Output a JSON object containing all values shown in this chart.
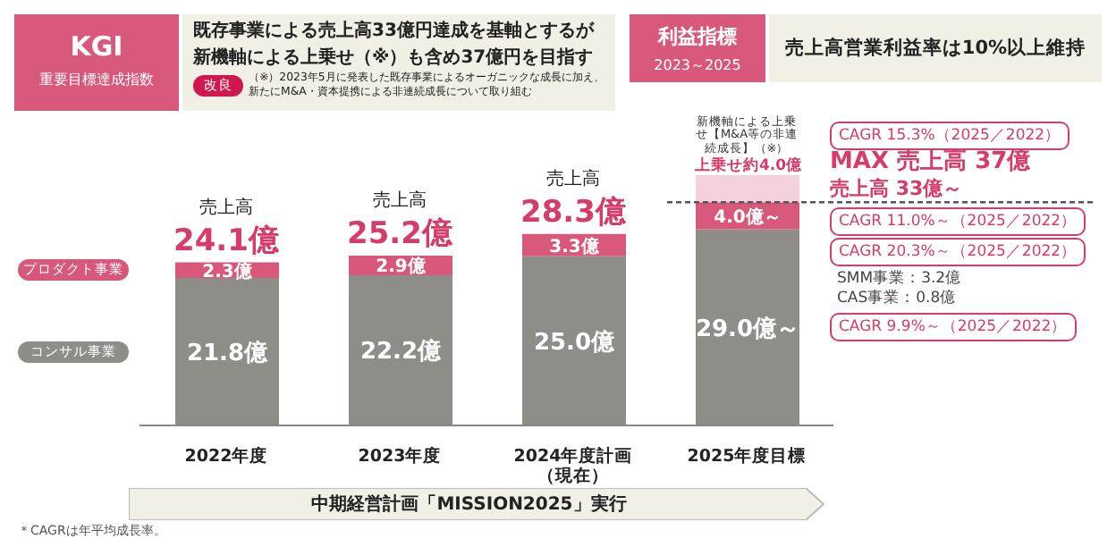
{
  "chart_data": {
    "type": "bar",
    "title": "KGI",
    "subtitle": "重要目標達成指数",
    "categories": [
      "2022年度",
      "2023年度",
      "2024年度計画（現在）",
      "2025年度目標"
    ],
    "stacked": true,
    "tick_labels": "x",
    "legend": "left",
    "series": [
      {
        "name": "コンサル事業",
        "color": "#8e8d88",
        "values": [
          21.8,
          22.2,
          25.0,
          29.0
        ],
        "value_labels": [
          "21.8億",
          "22.2億",
          "25.0億",
          "29.0億～"
        ]
      },
      {
        "name": "プロダクト事業",
        "color": "#d8587c",
        "values": [
          2.3,
          2.9,
          3.3,
          4.0
        ],
        "value_labels": [
          "2.3億",
          "2.9億",
          "3.3億",
          "4.0億～"
        ]
      },
      {
        "name": "新機軸による上乗せ【M&A等の非連続成長】（※）",
        "color": "#f4d2dc",
        "values": [
          null,
          null,
          null,
          4.0
        ],
        "value_labels": [
          null,
          null,
          null,
          "上乗せ約4.0億"
        ]
      }
    ],
    "totals": [
      "24.1億",
      "25.2億",
      "28.3億",
      null
    ],
    "ref_lines": [
      {
        "axis": "y",
        "value": 33,
        "color": "#555555",
        "line_style": "dashed"
      }
    ],
    "annotations": [
      "既存事業による売上高33億円達成を基軸とするが",
      "新機軸による上乗せ（※）も含め37億円を目指す",
      "改良",
      "（※）2023年5月に発表した既存事業によるオーガニックな成長に加え、新たにM&A・資本提携による非連続成長について取り組む",
      "利益指標",
      "2023～2025",
      "売上高営業利益率は10%以上維持",
      {
        "text": "売上高",
        "x": "2022年度",
        "y": 24.1
      },
      {
        "text": "売上高",
        "x": "2023年度",
        "y": 25.2
      },
      {
        "text": "売上高",
        "x": "2024年度計画（現在）",
        "y": 28.3
      },
      "MAX 売上高 37億",
      "CAGR 15.3%（2025／2022）",
      "売上高 33億～",
      "CAGR 11.0%～（2025／2022）",
      "CAGR 20.3%～（2025／2022）",
      "SMM事業：3.2億",
      "CAS事業：0.8億",
      "CAGR 9.9%～（2025／2022）",
      "中期経営計画「MISSION2025」実行",
      "＊CAGRは年平均成長率。"
    ]
  }
}
